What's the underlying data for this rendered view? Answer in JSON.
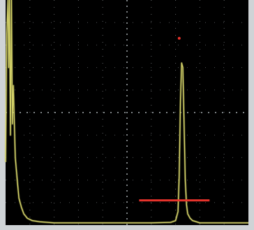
{
  "display": {
    "background_color": "#000000",
    "frame_color": "#cfd3d6",
    "grid_color": "#8a8f93",
    "trace_color": "#d2d068",
    "gate_color": "#e8332b",
    "marker_color": "#e8332b"
  },
  "chart_data": {
    "type": "line",
    "title": "",
    "xlabel": "",
    "ylabel": "",
    "xlim": [
      0,
      10
    ],
    "ylim": [
      0,
      100
    ],
    "grid": true,
    "grid_divisions": {
      "x": 10,
      "y": 10
    },
    "series": [
      {
        "x": [
          0.0,
          0.05,
          0.1,
          0.13,
          0.16,
          0.2,
          0.24,
          0.28,
          0.32,
          0.4,
          0.48,
          0.55,
          0.65,
          0.75,
          0.9,
          1.1,
          1.4,
          2.0,
          3.0,
          4.0,
          5.0,
          6.0,
          6.8,
          7.0,
          7.1,
          7.15,
          7.2,
          7.25,
          7.3,
          7.35,
          7.4,
          7.45,
          7.5,
          7.6,
          7.7,
          7.85,
          8.0,
          8.5,
          9.0,
          10.0
        ],
        "y": [
          28,
          85,
          100,
          70,
          100,
          40,
          100,
          45,
          62,
          30,
          20,
          12,
          8,
          5,
          3,
          2,
          1.5,
          1,
          1,
          1,
          1,
          1,
          1.2,
          2,
          6,
          22,
          55,
          72,
          70,
          45,
          20,
          9,
          5,
          3,
          2,
          1.5,
          1,
          1,
          1,
          1
        ]
      }
    ],
    "gate": {
      "start": 5.5,
      "end": 8.4,
      "level": 11
    },
    "peak_marker": {
      "x": 7.15,
      "y": 83
    }
  }
}
